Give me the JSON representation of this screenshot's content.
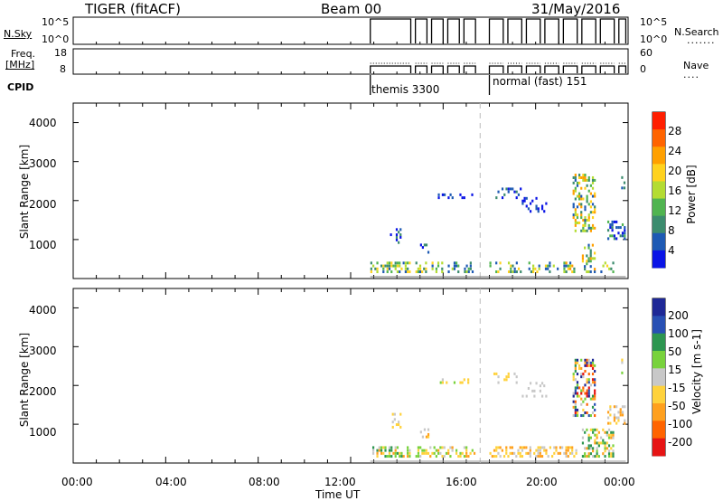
{
  "header": {
    "station": "TIGER (fitACF)",
    "beam": "Beam 00",
    "date": "31/May/2016"
  },
  "top_panels": {
    "nsky_label": "N.Sky",
    "nsearch_label": "N.Search",
    "nsky_ticks": [
      "10^5",
      "10^0"
    ],
    "nsearch_ticks": [
      "10^5",
      "10^0"
    ],
    "freq_label": "Freq.",
    "freq_unit": "[MHz]",
    "freq_ticks": [
      "18",
      "8"
    ],
    "nave_label": "Nave",
    "nave_ticks": [
      "60",
      "0"
    ],
    "cpid_label": "CPID",
    "cpid_modes": [
      {
        "name": "themis 3300",
        "start_hour": 12.85
      },
      {
        "name": "normal (fast) 151",
        "start_hour": 18.0
      }
    ],
    "data_blocks": [
      [
        12.85,
        14.6
      ],
      [
        14.8,
        15.3
      ],
      [
        15.5,
        16.0
      ],
      [
        16.2,
        16.7
      ],
      [
        16.9,
        17.4
      ],
      [
        18.0,
        18.6
      ],
      [
        18.8,
        19.4
      ],
      [
        19.6,
        20.2
      ],
      [
        20.4,
        21.0
      ],
      [
        21.2,
        21.8
      ],
      [
        22.0,
        22.6
      ],
      [
        22.8,
        23.4
      ],
      [
        23.6,
        23.9
      ]
    ]
  },
  "x_axis": {
    "label": "Time UT",
    "ticks": [
      "00:00",
      "04:00",
      "08:00",
      "12:00",
      "16:00",
      "20:00",
      "00:00"
    ]
  },
  "chart_data": [
    {
      "type": "heatmap",
      "panel": "power",
      "ylabel": "Slant Range [km]",
      "ylim": [
        0,
        4500
      ],
      "yticks": [
        "1000",
        "2000",
        "3000",
        "4000"
      ],
      "xlim": [
        0,
        24
      ],
      "colorbar_label": "Power [dB]",
      "colorbar_ticks": [
        "4",
        "8",
        "12",
        "16",
        "20",
        "24",
        "28"
      ],
      "colorbar_colors": [
        "#0a14e6",
        "#1e5ab4",
        "#3c8c6e",
        "#50b450",
        "#b4dc32",
        "#ffd21e",
        "#ffa000",
        "#ff6400",
        "#ff1e00"
      ],
      "dashed_line_hour": 17.6,
      "patches": [
        {
          "h0": 12.85,
          "h1": 14.6,
          "r0": 150,
          "r1": 450,
          "density": 0.55,
          "v0": 1,
          "v1": 5
        },
        {
          "h0": 14.8,
          "h1": 15.3,
          "r0": 150,
          "r1": 450,
          "density": 0.5,
          "v0": 1,
          "v1": 5
        },
        {
          "h0": 15.5,
          "h1": 16.0,
          "r0": 150,
          "r1": 450,
          "density": 0.45,
          "v0": 1,
          "v1": 5
        },
        {
          "h0": 16.2,
          "h1": 16.7,
          "r0": 150,
          "r1": 450,
          "density": 0.45,
          "v0": 1,
          "v1": 4
        },
        {
          "h0": 16.9,
          "h1": 17.4,
          "r0": 150,
          "r1": 450,
          "density": 0.4,
          "v0": 1,
          "v1": 4
        },
        {
          "h0": 18.0,
          "h1": 18.6,
          "r0": 150,
          "r1": 450,
          "density": 0.5,
          "v0": 1,
          "v1": 5
        },
        {
          "h0": 18.8,
          "h1": 19.4,
          "r0": 150,
          "r1": 450,
          "density": 0.45,
          "v0": 1,
          "v1": 5
        },
        {
          "h0": 19.6,
          "h1": 20.2,
          "r0": 150,
          "r1": 450,
          "density": 0.45,
          "v0": 1,
          "v1": 5
        },
        {
          "h0": 20.4,
          "h1": 21.0,
          "r0": 150,
          "r1": 450,
          "density": 0.45,
          "v0": 1,
          "v1": 5
        },
        {
          "h0": 21.2,
          "h1": 21.8,
          "r0": 150,
          "r1": 450,
          "density": 0.45,
          "v0": 1,
          "v1": 6
        },
        {
          "h0": 22.0,
          "h1": 22.6,
          "r0": 150,
          "r1": 900,
          "density": 0.45,
          "v0": 1,
          "v1": 6
        },
        {
          "h0": 22.8,
          "h1": 23.4,
          "r0": 150,
          "r1": 450,
          "density": 0.4,
          "v0": 1,
          "v1": 5
        },
        {
          "h0": 13.7,
          "h1": 14.2,
          "r0": 900,
          "r1": 1300,
          "density": 0.3,
          "v0": 0,
          "v1": 2
        },
        {
          "h0": 15.0,
          "h1": 15.4,
          "r0": 650,
          "r1": 900,
          "density": 0.3,
          "v0": 0,
          "v1": 2
        },
        {
          "h0": 15.6,
          "h1": 17.3,
          "r0": 2050,
          "r1": 2200,
          "density": 0.22,
          "v0": 0,
          "v1": 1
        },
        {
          "h0": 18.0,
          "h1": 19.4,
          "r0": 2050,
          "r1": 2350,
          "density": 0.25,
          "v0": 0,
          "v1": 2
        },
        {
          "h0": 19.4,
          "h1": 20.5,
          "r0": 1700,
          "r1": 2100,
          "density": 0.2,
          "v0": 0,
          "v1": 1
        },
        {
          "h0": 21.6,
          "h1": 22.6,
          "r0": 1200,
          "r1": 2700,
          "density": 0.42,
          "v0": 1,
          "v1": 6
        },
        {
          "h0": 23.1,
          "h1": 23.9,
          "r0": 1000,
          "r1": 1500,
          "density": 0.45,
          "v0": 0,
          "v1": 3
        },
        {
          "h0": 23.7,
          "h1": 23.9,
          "r0": 2300,
          "r1": 2700,
          "density": 0.3,
          "v0": 0,
          "v1": 2
        }
      ]
    },
    {
      "type": "heatmap",
      "panel": "velocity",
      "ylabel": "Slant Range [km]",
      "ylim": [
        0,
        4500
      ],
      "yticks": [
        "1000",
        "2000",
        "3000",
        "4000"
      ],
      "xlim": [
        0,
        24
      ],
      "colorbar_label": "Velocity [m s-1]",
      "colorbar_ticks": [
        "200",
        "100",
        "50",
        "15",
        "-15",
        "-50",
        "-100",
        "-200"
      ],
      "colorbar_colors": [
        "#1e2896",
        "#2850b4",
        "#2d9650",
        "#78d23c",
        "#c8c8c8",
        "#ffd23c",
        "#ffa01e",
        "#ff6400",
        "#e61414"
      ],
      "dashed_line_hour": 17.6,
      "patches": [
        {
          "h0": 12.85,
          "h1": 14.6,
          "r0": 150,
          "r1": 450,
          "density": 0.6,
          "v0": 2,
          "v1": 6
        },
        {
          "h0": 14.8,
          "h1": 17.4,
          "r0": 150,
          "r1": 450,
          "density": 0.5,
          "v0": 3,
          "v1": 6
        },
        {
          "h0": 18.0,
          "h1": 21.8,
          "r0": 150,
          "r1": 450,
          "density": 0.5,
          "v0": 4,
          "v1": 6
        },
        {
          "h0": 22.0,
          "h1": 23.4,
          "r0": 150,
          "r1": 900,
          "density": 0.45,
          "v0": 2,
          "v1": 6
        },
        {
          "h0": 13.7,
          "h1": 14.2,
          "r0": 900,
          "r1": 1300,
          "density": 0.3,
          "v0": 4,
          "v1": 5
        },
        {
          "h0": 15.0,
          "h1": 15.4,
          "r0": 650,
          "r1": 900,
          "density": 0.3,
          "v0": 4,
          "v1": 6
        },
        {
          "h0": 15.6,
          "h1": 17.3,
          "r0": 2050,
          "r1": 2200,
          "density": 0.22,
          "v0": 3,
          "v1": 5
        },
        {
          "h0": 18.0,
          "h1": 19.4,
          "r0": 2050,
          "r1": 2350,
          "density": 0.25,
          "v0": 4,
          "v1": 5
        },
        {
          "h0": 19.4,
          "h1": 20.5,
          "r0": 1700,
          "r1": 2100,
          "density": 0.2,
          "v0": 4,
          "v1": 4
        },
        {
          "h0": 21.6,
          "h1": 22.6,
          "r0": 1200,
          "r1": 2700,
          "density": 0.42,
          "v0": 0,
          "v1": 8
        },
        {
          "h0": 23.1,
          "h1": 23.9,
          "r0": 1000,
          "r1": 1500,
          "density": 0.45,
          "v0": 4,
          "v1": 6
        },
        {
          "h0": 23.7,
          "h1": 23.9,
          "r0": 2300,
          "r1": 2700,
          "density": 0.3,
          "v0": 3,
          "v1": 5
        }
      ]
    }
  ]
}
